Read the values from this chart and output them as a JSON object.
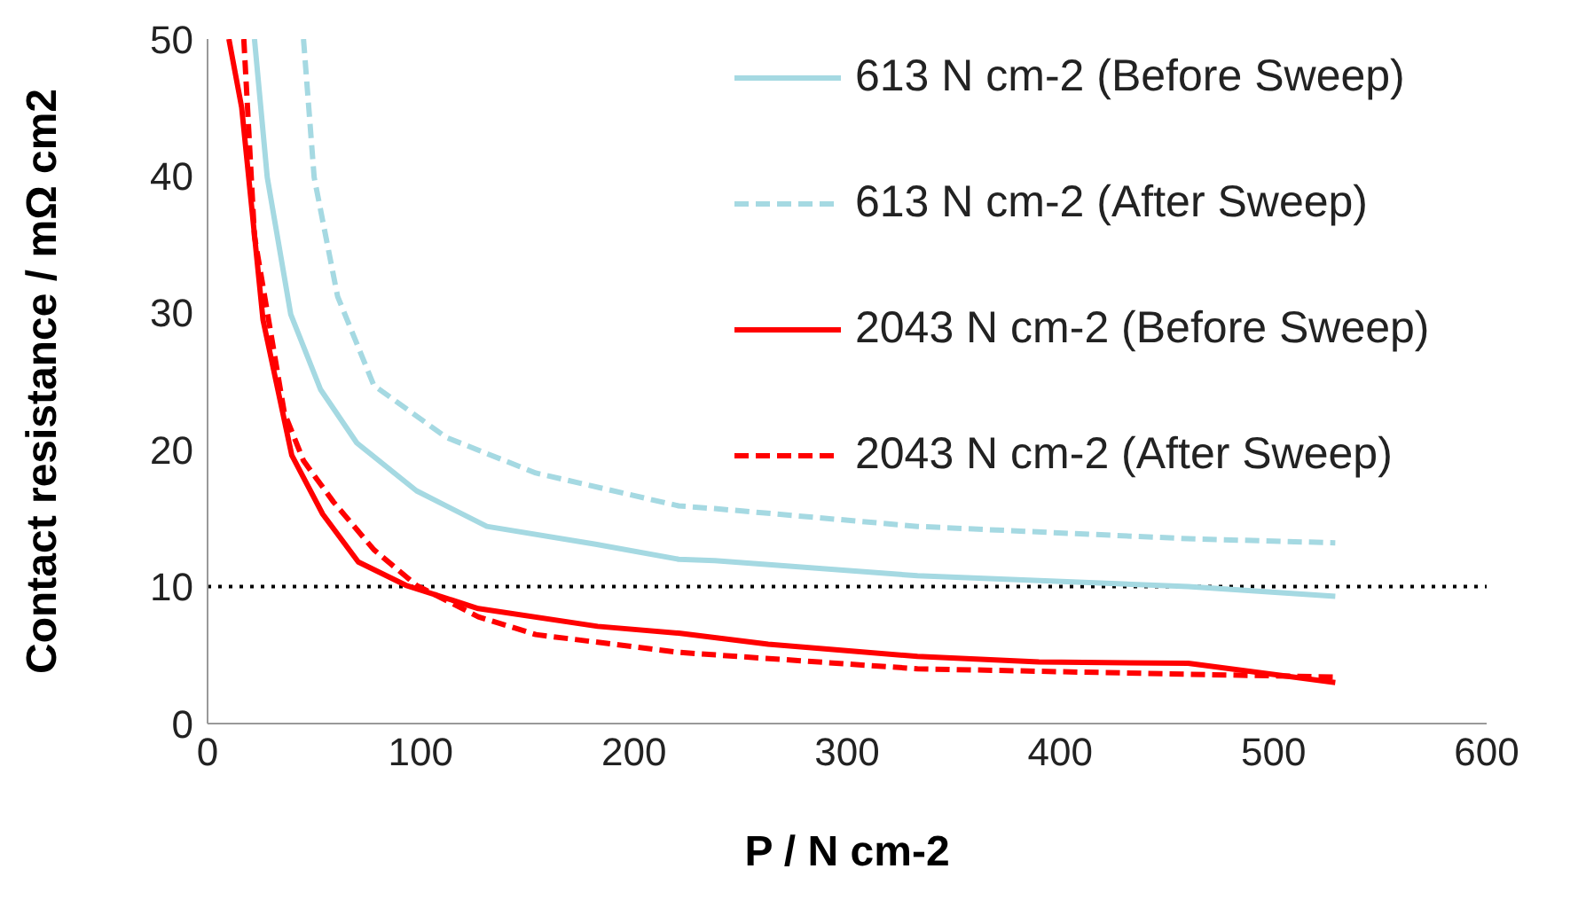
{
  "chart_data": {
    "type": "line",
    "xlabel": "P / N cm-2",
    "ylabel": "Contact resistance / mΩ cm2",
    "xlim": [
      0,
      600
    ],
    "xticks": [
      0,
      100,
      200,
      300,
      400,
      500,
      600
    ],
    "ylim": [
      0,
      50
    ],
    "yticks": [
      0,
      10,
      20,
      30,
      40,
      50
    ],
    "grid": false,
    "legend": "top right",
    "marker": "none",
    "series": [
      {
        "name": "613 N cm-2 (Before Sweep)",
        "color": "#a5d9e2",
        "line_style": "solid",
        "x": [
          22,
          28,
          39,
          53,
          70,
          98,
          131,
          182,
          221,
          238,
          333,
          460,
          529
        ],
        "values": [
          50,
          39.9,
          29.9,
          24.4,
          20.5,
          17,
          14.4,
          13.1,
          12,
          11.9,
          10.8,
          10,
          9.3
        ]
      },
      {
        "name": "613 N cm-2 (After Sweep)",
        "color": "#a5d9e2",
        "line_style": "dashed",
        "x": [
          45,
          50,
          61,
          78,
          112,
          154,
          221,
          238,
          333,
          460,
          529
        ],
        "values": [
          50,
          39.9,
          31.2,
          24.7,
          20.9,
          18.3,
          15.9,
          15.7,
          14.4,
          13.5,
          13.2
        ]
      },
      {
        "name": "2043 N cm-2 (Before Sweep)",
        "color": "#ff0000",
        "line_style": "solid",
        "x": [
          10,
          16,
          26,
          39.5,
          54,
          70.7,
          93,
          127,
          183,
          221,
          263,
          333,
          390,
          460,
          529
        ],
        "values": [
          50,
          45,
          29.5,
          19.6,
          15.3,
          11.8,
          10.1,
          8.4,
          7.1,
          6.6,
          5.8,
          4.9,
          4.5,
          4.4,
          3
        ]
      },
      {
        "name": "2043 N cm-2 (After Sweep)",
        "color": "#ff0000",
        "line_style": "dashed",
        "x": [
          17,
          22,
          36,
          45,
          59,
          78,
          98,
          127,
          154,
          221,
          333,
          460,
          529
        ],
        "values": [
          50,
          35.6,
          22.7,
          19.2,
          16.2,
          12.7,
          10.1,
          7.8,
          6.5,
          5.2,
          4,
          3.6,
          3.4
        ]
      }
    ],
    "ref_lines": [
      {
        "axis": "y",
        "value": 10,
        "color": "#000000",
        "line_style": "dotted"
      }
    ]
  }
}
